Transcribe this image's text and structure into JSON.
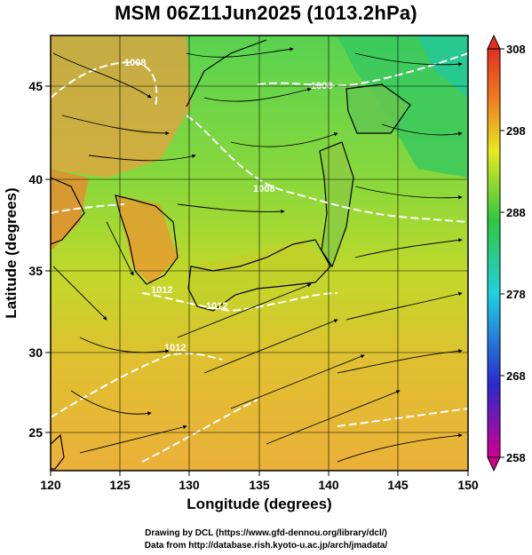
{
  "title": "MSM 06Z11Jun2025 (1013.2hPa)",
  "map": {
    "xlabel": "Longitude (degrees)",
    "ylabel": "Latitude  (degrees)",
    "lon_ticks": [
      "120",
      "125",
      "130",
      "135",
      "140",
      "145",
      "150"
    ],
    "lat_ticks": [
      "25",
      "30",
      "35",
      "40",
      "45"
    ],
    "lon_range": [
      120,
      150
    ],
    "lat_range": [
      22.4,
      47.6
    ],
    "contour_labels": [
      "1008",
      "1008",
      "1012",
      "1008",
      "1012",
      "1012"
    ],
    "grid": true
  },
  "colorbar": {
    "ticks": [
      "308",
      "298",
      "288",
      "278",
      "268",
      "258"
    ],
    "colormap": [
      "#d10090",
      "#2a2ad0",
      "#20d0e0",
      "#30c840",
      "#e8e820",
      "#f07a20",
      "#e03020"
    ]
  },
  "credits": {
    "line1": "Drawing by DCL (https://www.gfd-dennou.org/library/dcl/)",
    "line2": "Data from http://database.rish.kyoto-u.ac.jp/arch/jmadata/"
  }
}
